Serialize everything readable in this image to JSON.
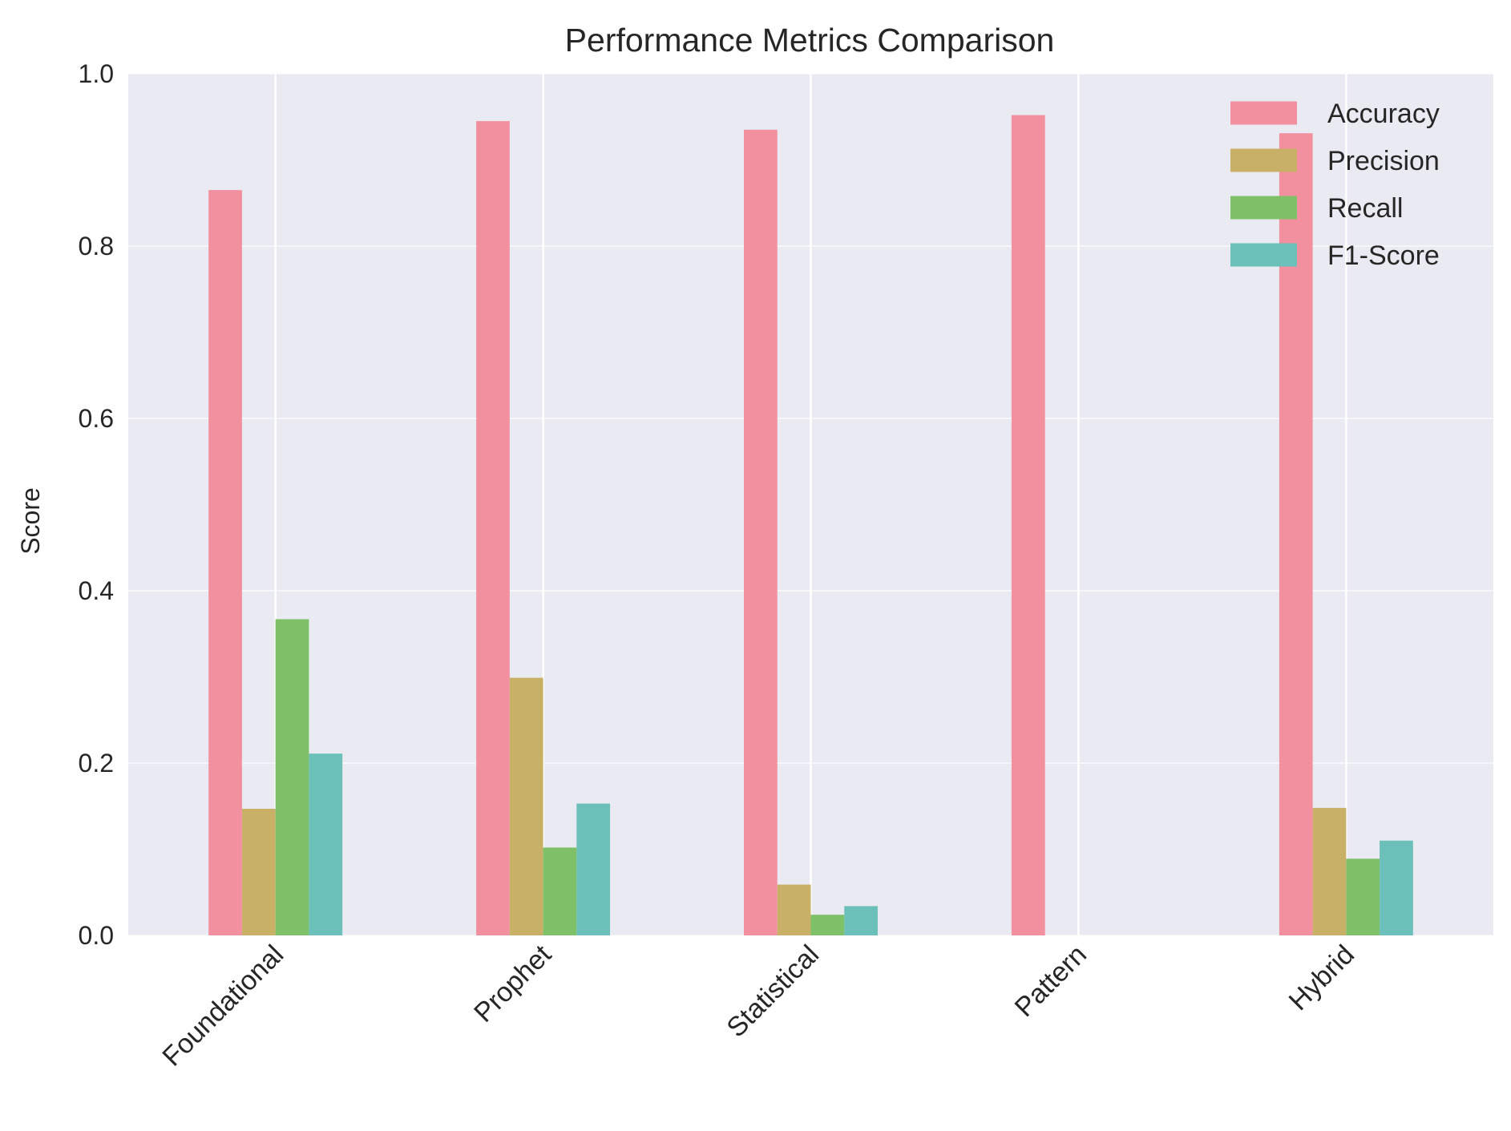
{
  "chart_data": {
    "type": "bar",
    "title": "Performance Metrics Comparison",
    "xlabel": "",
    "ylabel": "Score",
    "categories": [
      "Foundational",
      "Prophet",
      "Statistical",
      "Pattern",
      "Hybrid"
    ],
    "series": [
      {
        "name": "Accuracy",
        "color": "#f2909f",
        "values": [
          0.865,
          0.945,
          0.935,
          0.952,
          0.931
        ]
      },
      {
        "name": "Precision",
        "color": "#c8b067",
        "values": [
          0.147,
          0.299,
          0.059,
          0.0,
          0.148
        ]
      },
      {
        "name": "Recall",
        "color": "#7ec168",
        "values": [
          0.367,
          0.102,
          0.024,
          0.0,
          0.089
        ]
      },
      {
        "name": "F1-Score",
        "color": "#6bc0b9",
        "values": [
          0.211,
          0.153,
          0.034,
          0.0,
          0.11
        ]
      }
    ],
    "ylim": [
      0,
      1.0
    ],
    "yticks": [
      0.0,
      0.2,
      0.4,
      0.6,
      0.8,
      1.0
    ],
    "ytick_labels": [
      "0.0",
      "0.2",
      "0.4",
      "0.6",
      "0.8",
      "1.0"
    ],
    "grid": true,
    "legend_position": "top-right",
    "colors": {
      "plot_background": "#eaeaf2",
      "grid": "#ffffff"
    }
  }
}
